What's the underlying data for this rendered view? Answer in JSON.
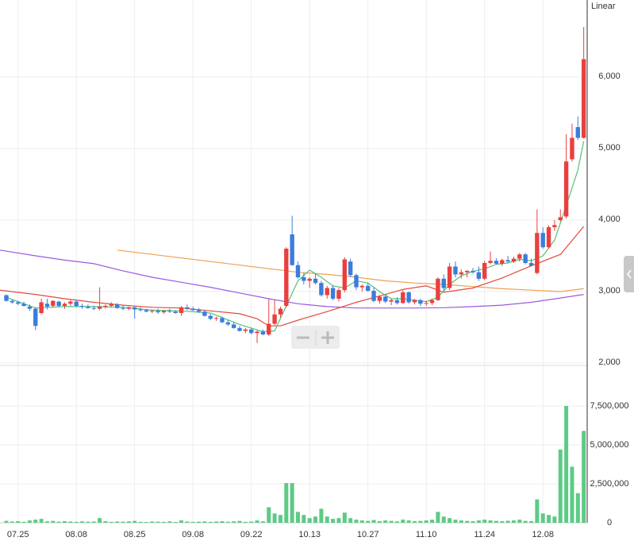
{
  "chart_data": {
    "type": "candlestick",
    "scale_label": "Linear",
    "categories": [
      null,
      null,
      "07.25",
      null,
      null,
      null,
      null,
      null,
      null,
      null,
      null,
      null,
      "08.08",
      null,
      null,
      null,
      null,
      null,
      null,
      null,
      null,
      null,
      "08.25",
      null,
      null,
      null,
      null,
      null,
      null,
      null,
      null,
      null,
      "09.08",
      null,
      null,
      null,
      null,
      null,
      null,
      null,
      null,
      null,
      "09.22",
      null,
      null,
      null,
      null,
      null,
      null,
      null,
      null,
      null,
      "10.13",
      null,
      null,
      null,
      null,
      null,
      null,
      null,
      null,
      null,
      "10.27",
      null,
      null,
      null,
      null,
      null,
      null,
      null,
      null,
      null,
      "11.10",
      null,
      null,
      null,
      null,
      null,
      null,
      null,
      null,
      null,
      "11.24",
      null,
      null,
      null,
      null,
      null,
      null,
      null,
      null,
      null,
      "12.08",
      null,
      null,
      null,
      null,
      null,
      null,
      null
    ],
    "open": [
      2950,
      2870,
      2850,
      2830,
      2790,
      2760,
      2700,
      2830,
      2800,
      2860,
      2800,
      2830,
      2860,
      2800,
      2790,
      2770,
      2760,
      2790,
      2800,
      2820,
      2770,
      2760,
      2780,
      2750,
      2740,
      2720,
      2730,
      2710,
      2730,
      2720,
      2700,
      2780,
      2760,
      2740,
      2720,
      2660,
      2620,
      2630,
      2570,
      2540,
      2490,
      2450,
      2470,
      2420,
      2440,
      2400,
      2550,
      2680,
      2800,
      3800,
      3370,
      3200,
      3150,
      3180,
      3120,
      2950,
      3050,
      2900,
      3020,
      3420,
      3230,
      3060,
      3080,
      3010,
      2870,
      2930,
      2860,
      2880,
      2840,
      2990,
      2850,
      2880,
      2830,
      2840,
      2880,
      3180,
      3050,
      3350,
      3240,
      3270,
      3290,
      3270,
      3180,
      3400,
      3430,
      3390,
      3440,
      3420,
      3460,
      3520,
      3400,
      3260,
      3820,
      3620,
      3900,
      4000,
      4050,
      4850,
      5300,
      5150
    ],
    "high": [
      2960,
      2890,
      2870,
      2860,
      2820,
      2780,
      2900,
      2900,
      2880,
      2870,
      2850,
      2880,
      2880,
      2830,
      2820,
      2800,
      3060,
      2820,
      2850,
      2840,
      2800,
      2790,
      2800,
      2780,
      2760,
      2750,
      2760,
      2740,
      2760,
      2740,
      2800,
      2820,
      2790,
      2770,
      2740,
      2690,
      2650,
      2650,
      2600,
      2570,
      2520,
      2490,
      2490,
      2460,
      2470,
      2900,
      2880,
      2790,
      3620,
      4060,
      3420,
      3260,
      3200,
      3250,
      3150,
      3080,
      3090,
      3050,
      3480,
      3460,
      3250,
      3100,
      3120,
      3060,
      2950,
      2960,
      2900,
      2920,
      3020,
      3000,
      2900,
      2900,
      2870,
      2900,
      3200,
      3240,
      3400,
      3420,
      3310,
      3300,
      3330,
      3350,
      3430,
      3560,
      3470,
      3460,
      3500,
      3490,
      3540,
      3540,
      3460,
      4150,
      3900,
      3930,
      4000,
      4150,
      5200,
      5350,
      5450,
      6700
    ],
    "low": [
      2860,
      2830,
      2810,
      2790,
      2730,
      2460,
      2680,
      2750,
      2780,
      2780,
      2760,
      2800,
      2780,
      2760,
      2760,
      2740,
      2740,
      2760,
      2780,
      2760,
      2740,
      2740,
      2620,
      2720,
      2710,
      2700,
      2690,
      2690,
      2700,
      2690,
      2660,
      2740,
      2730,
      2700,
      2650,
      2600,
      2590,
      2560,
      2520,
      2480,
      2440,
      2420,
      2400,
      2280,
      2390,
      2380,
      2530,
      2640,
      2780,
      3360,
      3180,
      3100,
      3050,
      3100,
      2930,
      2900,
      2880,
      2860,
      2990,
      3200,
      3020,
      3000,
      3000,
      2850,
      2830,
      2840,
      2810,
      2820,
      2830,
      2830,
      2820,
      2800,
      2800,
      2810,
      2870,
      3000,
      3020,
      3200,
      3180,
      3200,
      3250,
      3150,
      3160,
      3380,
      3380,
      3360,
      3400,
      3400,
      3420,
      3380,
      3350,
      3240,
      3600,
      3600,
      3850,
      3980,
      4020,
      4820,
      5120,
      5140
    ],
    "close": [
      2870,
      2850,
      2830,
      2800,
      2760,
      2520,
      2850,
      2790,
      2870,
      2800,
      2830,
      2860,
      2800,
      2790,
      2770,
      2760,
      2790,
      2800,
      2820,
      2770,
      2760,
      2780,
      2750,
      2740,
      2720,
      2730,
      2710,
      2730,
      2720,
      2700,
      2780,
      2760,
      2740,
      2720,
      2660,
      2620,
      2630,
      2570,
      2540,
      2490,
      2450,
      2470,
      2420,
      2440,
      2400,
      2550,
      2680,
      2760,
      3600,
      3370,
      3200,
      3150,
      3180,
      3120,
      2950,
      3050,
      2900,
      3020,
      3450,
      3230,
      3060,
      3080,
      3010,
      2870,
      2930,
      2860,
      2880,
      2840,
      2990,
      2850,
      2880,
      2830,
      2840,
      2880,
      3180,
      3050,
      3350,
      3240,
      3270,
      3290,
      3270,
      3180,
      3400,
      3430,
      3390,
      3440,
      3420,
      3460,
      3520,
      3400,
      3360,
      3820,
      3620,
      3900,
      3930,
      4040,
      4820,
      5150,
      5150,
      6250
    ],
    "up_color": "#e8403f",
    "down_color": "#3b7ddd",
    "ylim": [
      2000,
      7078
    ],
    "yticks": [
      {
        "value": 2000,
        "label": "2,000"
      },
      {
        "value": 3000,
        "label": "3,000"
      },
      {
        "value": 4000,
        "label": "4,000"
      },
      {
        "value": 5000,
        "label": "5,000"
      },
      {
        "value": 6000,
        "label": "6,000"
      }
    ],
    "moving_averages": [
      {
        "color": "#9b59e0",
        "x": [
          -1.1,
          5,
          10,
          15,
          20,
          25,
          30,
          35,
          40,
          45,
          50,
          55,
          60,
          65,
          70,
          75,
          80,
          85,
          90,
          95,
          99
        ],
        "values": [
          3580,
          3500,
          3440,
          3390,
          3290,
          3200,
          3130,
          3060,
          2980,
          2900,
          2830,
          2790,
          2770,
          2770,
          2770,
          2775,
          2790,
          2810,
          2850,
          2910,
          2960
        ]
      },
      {
        "color": "#f0a050",
        "x": [
          19,
          25,
          30,
          35,
          40,
          45,
          50,
          55,
          60,
          65,
          70,
          75,
          80,
          85,
          90,
          95,
          99
        ],
        "values": [
          3580,
          3520,
          3470,
          3420,
          3370,
          3320,
          3270,
          3240,
          3200,
          3150,
          3120,
          3100,
          3070,
          3040,
          3020,
          3000,
          3040
        ]
      },
      {
        "color": "#e24a3b",
        "x": [
          -1.1,
          5,
          10,
          15,
          20,
          25,
          30,
          35,
          40,
          43,
          45,
          47,
          50,
          55,
          60,
          65,
          68,
          72,
          75,
          80,
          85,
          90,
          95,
          99
        ],
        "values": [
          3020,
          2960,
          2900,
          2850,
          2810,
          2780,
          2770,
          2730,
          2690,
          2620,
          2520,
          2520,
          2600,
          2720,
          2850,
          2960,
          3030,
          3080,
          2990,
          3050,
          3190,
          3360,
          3520,
          3910
        ]
      },
      {
        "color": "#52c17a",
        "x": [
          0,
          5,
          10,
          15,
          20,
          25,
          30,
          35,
          40,
          44,
          46,
          48,
          50,
          52,
          54,
          56,
          58,
          60,
          62,
          64,
          66,
          68,
          70,
          72,
          74,
          76,
          78,
          80,
          82,
          84,
          86,
          88,
          90,
          92,
          94,
          96,
          98,
          99
        ],
        "values": [
          2920,
          2770,
          2790,
          2790,
          2780,
          2740,
          2730,
          2700,
          2540,
          2440,
          2450,
          2800,
          3150,
          3300,
          3200,
          3080,
          3050,
          3150,
          3120,
          3000,
          2900,
          2900,
          2880,
          2860,
          2920,
          3100,
          3220,
          3280,
          3320,
          3380,
          3400,
          3450,
          3430,
          3500,
          3720,
          4200,
          4700,
          5100
        ]
      }
    ],
    "volume": {
      "type": "bar",
      "color": "#5ccb85",
      "values": [
        120000,
        80000,
        100000,
        60000,
        150000,
        200000,
        250000,
        90000,
        120000,
        70000,
        100000,
        80000,
        60000,
        90000,
        70000,
        80000,
        300000,
        100000,
        60000,
        80000,
        70000,
        90000,
        120000,
        60000,
        50000,
        80000,
        70000,
        60000,
        90000,
        50000,
        150000,
        80000,
        60000,
        70000,
        90000,
        60000,
        80000,
        100000,
        70000,
        90000,
        120000,
        60000,
        80000,
        150000,
        90000,
        1000000,
        600000,
        500000,
        2550000,
        2550000,
        700000,
        500000,
        300000,
        400000,
        900000,
        400000,
        250000,
        300000,
        650000,
        300000,
        200000,
        150000,
        120000,
        180000,
        100000,
        150000,
        120000,
        90000,
        200000,
        150000,
        100000,
        120000,
        150000,
        200000,
        700000,
        400000,
        300000,
        200000,
        150000,
        120000,
        100000,
        150000,
        200000,
        150000,
        120000,
        100000,
        130000,
        150000,
        200000,
        120000,
        100000,
        1500000,
        600000,
        500000,
        400000,
        4700000,
        7500000,
        3600000,
        1900000,
        5900000
      ],
      "ylim": [
        0,
        10000000
      ],
      "yticks": [
        0,
        {
          "value": 2500000,
          "label": "2,500,000"
        },
        {
          "value": 5000000,
          "label": "5,000,000"
        },
        {
          "value": 7500000,
          "label": "7,500,000"
        }
      ]
    }
  }
}
